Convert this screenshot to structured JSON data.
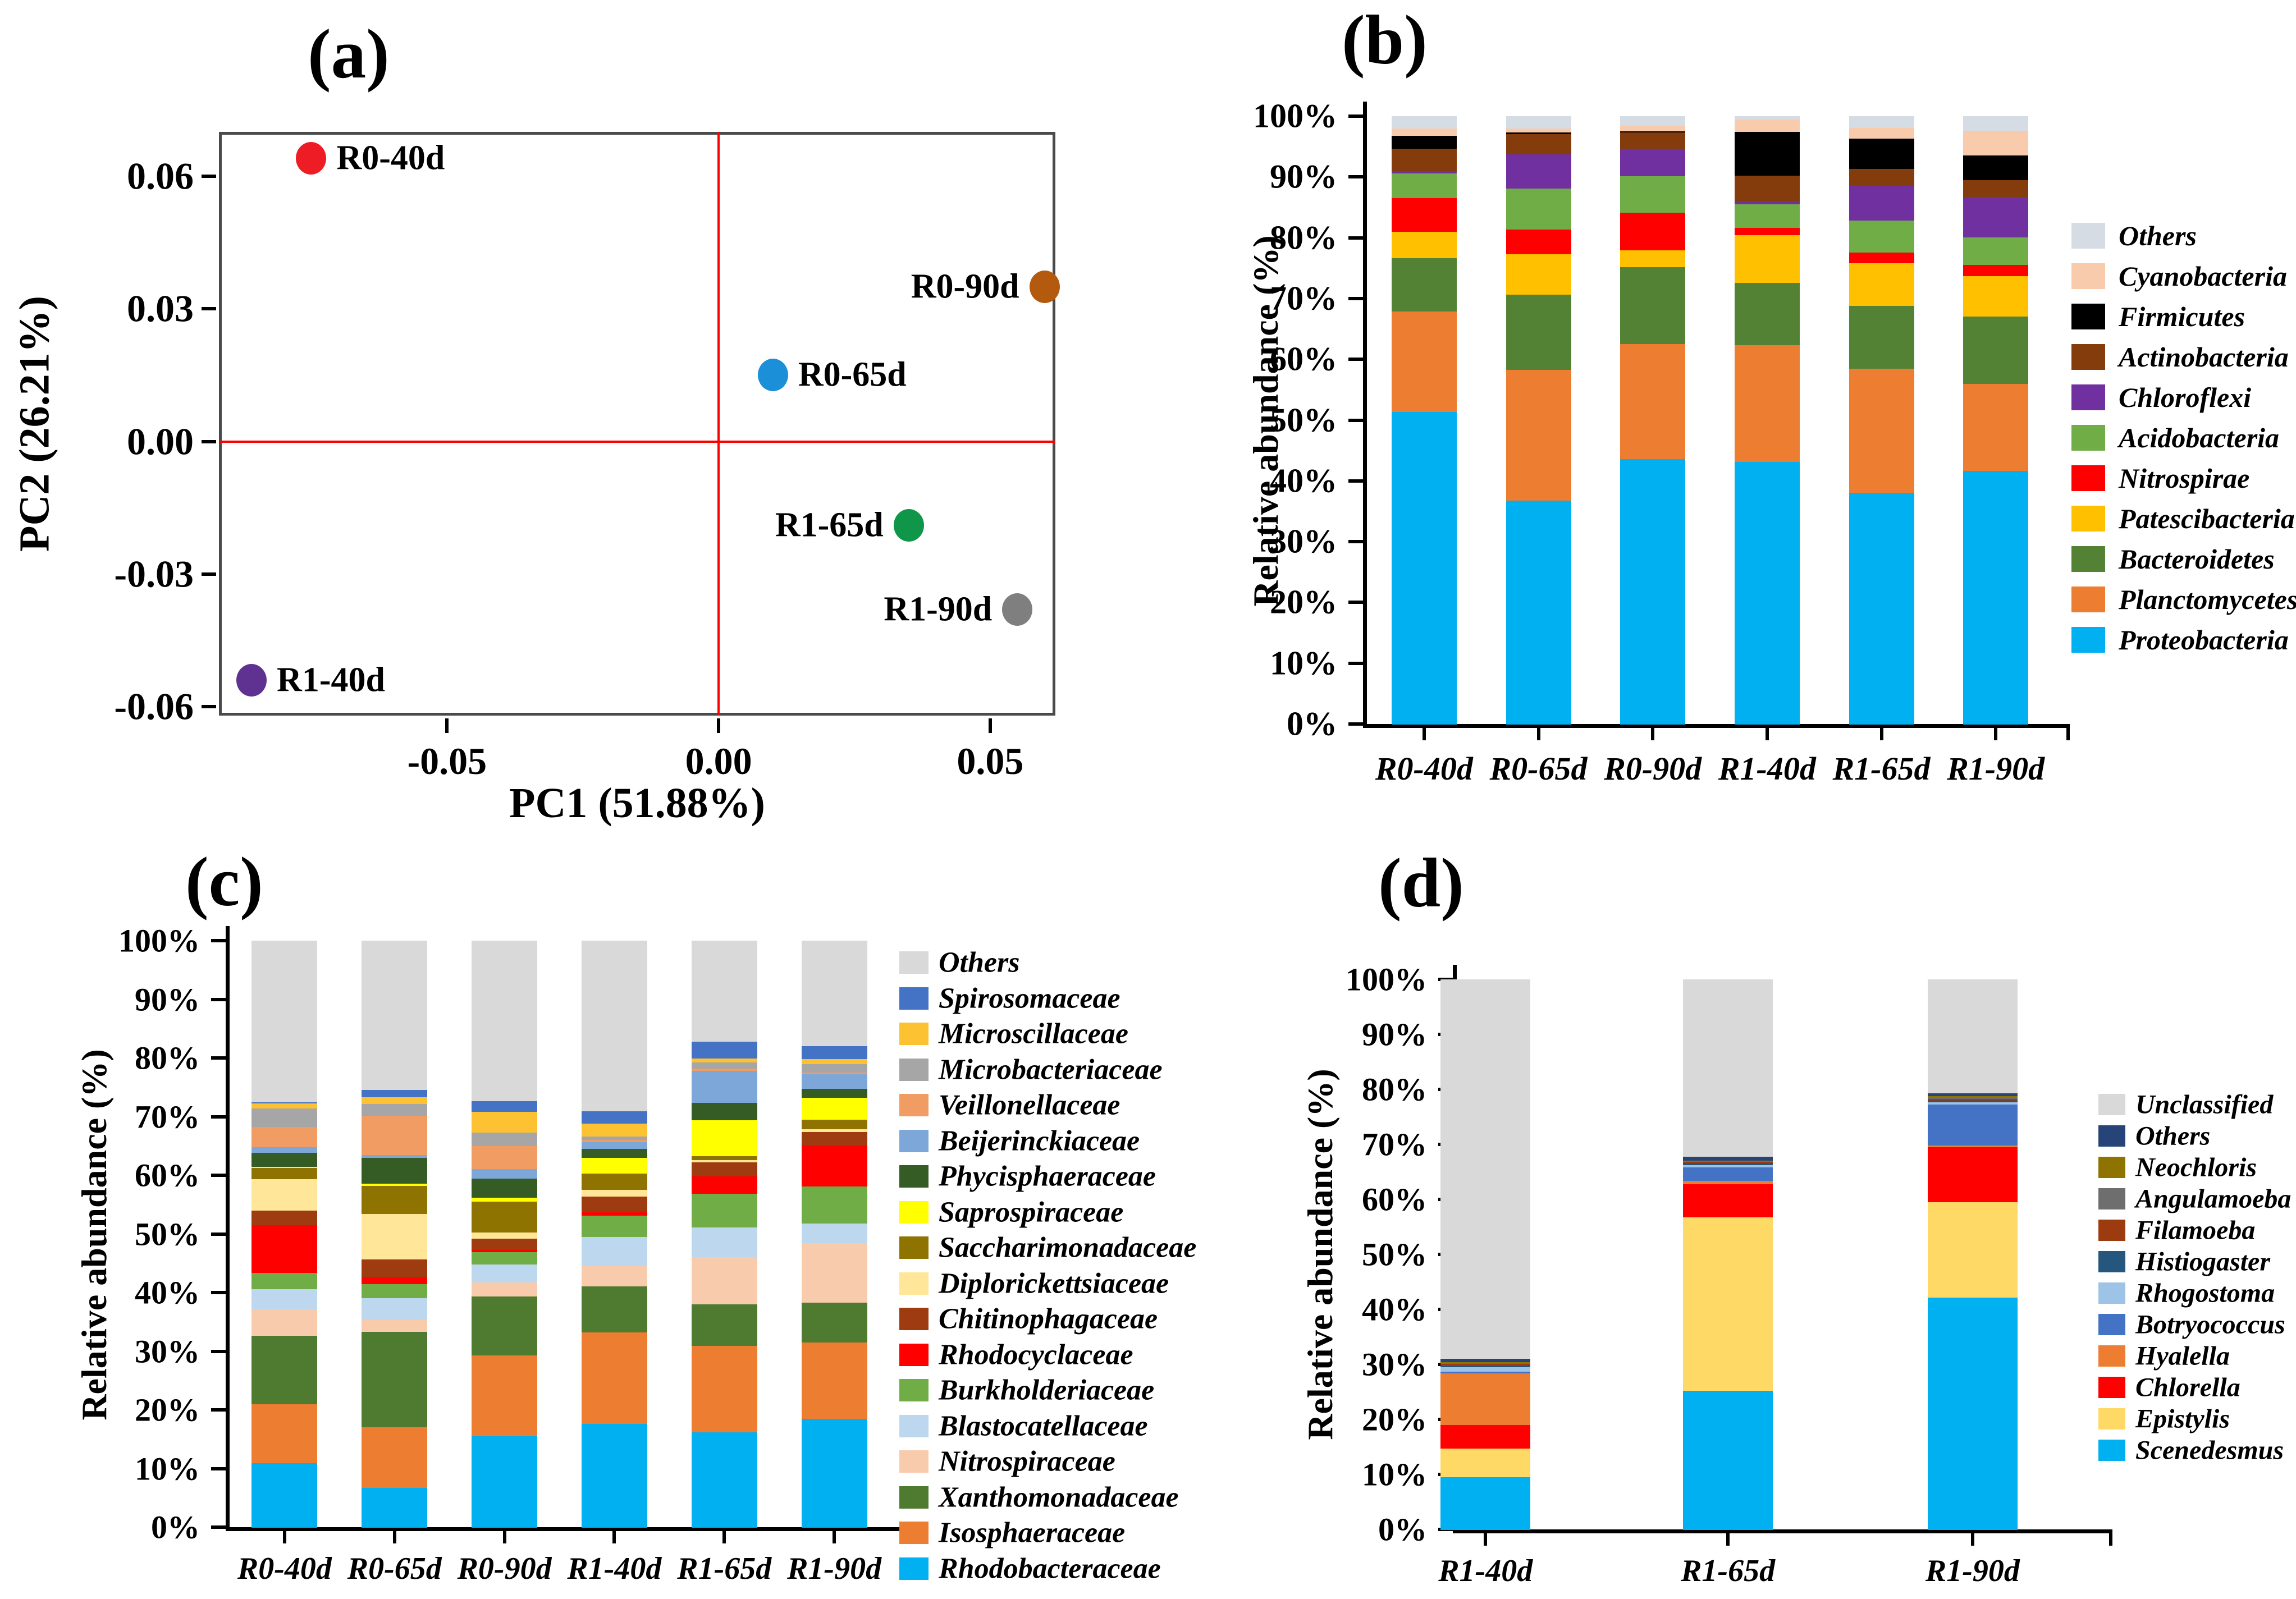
{
  "chart_data": [
    {
      "id": "pca",
      "type": "scatter",
      "title": "(a)",
      "xlabel": "PC1 (51.88%)",
      "ylabel": "PC2 (26.21%)",
      "xlim": [
        -0.092,
        0.062
      ],
      "ylim": [
        -0.062,
        0.07
      ],
      "xticks": [
        {
          "v": -0.05,
          "label": "-0.05"
        },
        {
          "v": 0,
          "label": "0.00"
        },
        {
          "v": 0.05,
          "label": "0.05"
        }
      ],
      "yticks": [
        {
          "v": 0.06,
          "label": "0.06"
        },
        {
          "v": 0.03,
          "label": "0.03"
        },
        {
          "v": 0,
          "label": "0.00"
        },
        {
          "v": -0.03,
          "label": "-0.03"
        },
        {
          "v": -0.06,
          "label": "-0.06"
        }
      ],
      "grid": false,
      "crosshair_color": "#ff0000",
      "frame_color": "#4a4a4a",
      "points": [
        {
          "label": "R0-40d",
          "x": -0.075,
          "y": 0.064,
          "color": "#ee1c24",
          "label_side": "right"
        },
        {
          "label": "R0-65d",
          "x": 0.01,
          "y": 0.015,
          "color": "#1b8fd8",
          "label_side": "right"
        },
        {
          "label": "R0-90d",
          "x": 0.06,
          "y": 0.035,
          "color": "#b35a0e",
          "label_side": "left"
        },
        {
          "label": "R1-40d",
          "x": -0.086,
          "y": -0.054,
          "color": "#5f3191",
          "label_side": "right"
        },
        {
          "label": "R1-65d",
          "x": 0.035,
          "y": -0.019,
          "color": "#0f9648",
          "label_side": "left"
        },
        {
          "label": "R1-90d",
          "x": 0.055,
          "y": -0.038,
          "color": "#7f7f7f",
          "label_side": "left"
        }
      ]
    },
    {
      "id": "phylum-bars",
      "type": "bar",
      "title": "(b)",
      "ylabel": "Relative abundance (%)",
      "ylim": [
        0,
        100
      ],
      "yticks": [
        "0%",
        "10%",
        "20%",
        "30%",
        "40%",
        "50%",
        "60%",
        "70%",
        "80%",
        "90%",
        "100%"
      ],
      "legend_position": "right",
      "categories": [
        "R0-40d",
        "R0-65d",
        "R0-90d",
        "R1-40d",
        "R1-65d",
        "R1-90d"
      ],
      "series": [
        {
          "name": "Proteobacteria",
          "color": "#00b0f0",
          "values": [
            51.4,
            36.8,
            43.6,
            43.2,
            38.1,
            41.7
          ]
        },
        {
          "name": "Planctomycetes",
          "color": "#ed7d31",
          "values": [
            16.5,
            21.5,
            19.0,
            19.2,
            20.4,
            14.3
          ]
        },
        {
          "name": "Bacteroidetes",
          "color": "#548235",
          "values": [
            8.8,
            12.4,
            12.6,
            10.2,
            10.3,
            11.1
          ]
        },
        {
          "name": "Patescibacteria",
          "color": "#ffc000",
          "values": [
            4.3,
            6.6,
            2.8,
            7.9,
            7.1,
            6.6
          ]
        },
        {
          "name": "Nitrospirae",
          "color": "#ff0000",
          "values": [
            5.6,
            4.1,
            6.2,
            1.2,
            1.7,
            1.9
          ]
        },
        {
          "name": "Acidobacteria",
          "color": "#70ad47",
          "values": [
            4.0,
            6.7,
            6.0,
            3.9,
            5.3,
            4.5
          ]
        },
        {
          "name": "Chloroflexi",
          "color": "#7030a0",
          "values": [
            0.4,
            5.7,
            4.5,
            0.4,
            5.7,
            6.7
          ]
        },
        {
          "name": "Actinobacteria",
          "color": "#843c0c",
          "values": [
            3.7,
            3.3,
            2.7,
            4.3,
            2.8,
            2.7
          ]
        },
        {
          "name": "Firmicutes",
          "color": "#000000",
          "values": [
            2.1,
            0.3,
            0.2,
            7.2,
            5.0,
            4.1
          ]
        },
        {
          "name": "Cyanobacteria",
          "color": "#f8cbad",
          "values": [
            1.2,
            0.6,
            0.9,
            2.0,
            1.7,
            4.1
          ]
        },
        {
          "name": "Others",
          "color": "#d6dce4",
          "values": [
            2.0,
            2.0,
            1.5,
            0.5,
            1.9,
            2.3
          ]
        }
      ]
    },
    {
      "id": "family-bars",
      "type": "bar",
      "title": "(c)",
      "ylabel": "Relative abundance (%)",
      "ylim": [
        0,
        100
      ],
      "yticks": [
        "0%",
        "10%",
        "20%",
        "30%",
        "40%",
        "50%",
        "60%",
        "70%",
        "80%",
        "90%",
        "100%"
      ],
      "legend_position": "right",
      "categories": [
        "R0-40d",
        "R0-65d",
        "R0-90d",
        "R1-40d",
        "R1-65d",
        "R1-90d"
      ],
      "series": [
        {
          "name": "Rhodobacteraceae",
          "color": "#00b0f0",
          "values": [
            11.0,
            6.8,
            15.6,
            17.7,
            16.2,
            18.5
          ]
        },
        {
          "name": "Isosphaeraceae",
          "color": "#ed7d31",
          "values": [
            10.0,
            10.3,
            13.7,
            15.6,
            14.8,
            13.0
          ]
        },
        {
          "name": "Xanthomonadaceae",
          "color": "#4f7b30",
          "values": [
            11.7,
            16.3,
            10.1,
            7.8,
            7.0,
            6.8
          ]
        },
        {
          "name": "Nitrospiraceae",
          "color": "#f8cbad",
          "values": [
            4.5,
            2.0,
            2.4,
            3.5,
            8.1,
            10.2
          ]
        },
        {
          "name": "Blastocatellaceae",
          "color": "#bdd7ee",
          "values": [
            3.4,
            3.7,
            3.0,
            4.9,
            5.1,
            3.3
          ]
        },
        {
          "name": "Burkholderiaceae",
          "color": "#70ad47",
          "values": [
            2.8,
            2.4,
            2.1,
            3.7,
            5.7,
            6.3
          ]
        },
        {
          "name": "Rhodocyclaceae",
          "color": "#ff0000",
          "values": [
            8.1,
            1.1,
            0.4,
            0.5,
            3.0,
            7.0
          ]
        },
        {
          "name": "Chitinophagaceae",
          "color": "#9e3b10",
          "values": [
            2.5,
            3.1,
            1.9,
            2.7,
            2.4,
            2.3
          ]
        },
        {
          "name": "Diplorickettsiaceae",
          "color": "#ffe699",
          "values": [
            5.4,
            7.8,
            1.1,
            1.2,
            0.3,
            0.5
          ]
        },
        {
          "name": "Saccharimonadaceae",
          "color": "#8f7300",
          "values": [
            1.9,
            4.7,
            5.3,
            2.7,
            0.7,
            1.6
          ]
        },
        {
          "name": "Saprospiraceae",
          "color": "#ffff00",
          "values": [
            0.2,
            0.4,
            0.6,
            2.7,
            6.1,
            3.8
          ]
        },
        {
          "name": "Phycisphaeraceae",
          "color": "#365c26",
          "values": [
            2.4,
            4.4,
            3.3,
            1.6,
            3.0,
            1.5
          ]
        },
        {
          "name": "Beijerinckiaceae",
          "color": "#7da7d8",
          "values": [
            0.9,
            0.5,
            1.6,
            1.1,
            5.5,
            2.5
          ]
        },
        {
          "name": "Veillonellaceae",
          "color": "#f09c62",
          "values": [
            3.5,
            6.7,
            3.9,
            0.4,
            0.3,
            0.3
          ]
        },
        {
          "name": "Microbacteriaceae",
          "color": "#a6a6a6",
          "values": [
            3.1,
            2.0,
            2.3,
            0.6,
            1.1,
            1.4
          ]
        },
        {
          "name": "Microscillaceae",
          "color": "#fdc232",
          "values": [
            0.9,
            1.2,
            3.6,
            2.2,
            0.7,
            0.9
          ]
        },
        {
          "name": "Spirosomaceae",
          "color": "#4472c4",
          "values": [
            0.2,
            1.2,
            1.8,
            2.1,
            2.8,
            2.2
          ]
        },
        {
          "name": "Others",
          "color": "#d9d9d9",
          "values": [
            27.5,
            25.4,
            27.3,
            29.0,
            17.2,
            17.9
          ]
        }
      ]
    },
    {
      "id": "eukaryote-bars",
      "type": "bar",
      "title": "(d)",
      "ylabel": "Relative abundance (%)",
      "ylim": [
        0,
        100
      ],
      "yticks": [
        "0%",
        "10%",
        "20%",
        "30%",
        "40%",
        "50%",
        "60%",
        "70%",
        "80%",
        "90%",
        "100%"
      ],
      "legend_position": "right",
      "categories": [
        "R1-40d",
        "R1-65d",
        "R1-90d"
      ],
      "series": [
        {
          "name": "Scenedesmus",
          "color": "#00b0f0",
          "values": [
            9.6,
            25.3,
            42.2
          ]
        },
        {
          "name": "Epistylis",
          "color": "#ffd966",
          "values": [
            5.2,
            31.5,
            17.3
          ]
        },
        {
          "name": "Chlorella",
          "color": "#ff0000",
          "values": [
            4.2,
            6.0,
            10.0
          ]
        },
        {
          "name": "Hyalella",
          "color": "#ed7d31",
          "values": [
            9.4,
            0.6,
            0.4
          ]
        },
        {
          "name": "Botryococcus",
          "color": "#4472c4",
          "values": [
            0.3,
            2.5,
            7.4
          ]
        },
        {
          "name": "Rhogostoma",
          "color": "#9dc3e6",
          "values": [
            0.9,
            0.4,
            0.4
          ]
        },
        {
          "name": "Histiogaster",
          "color": "#24567e",
          "values": [
            0.2,
            0.4,
            0.3
          ]
        },
        {
          "name": "Filamoeba",
          "color": "#9c3a10",
          "values": [
            0.4,
            0.2,
            0.3
          ]
        },
        {
          "name": "Angulamoeba",
          "color": "#6e6e6e",
          "values": [
            0.1,
            0.1,
            0.3
          ]
        },
        {
          "name": "Neochloris",
          "color": "#8f7300",
          "values": [
            0.2,
            0.1,
            0.2
          ]
        },
        {
          "name": "Others",
          "color": "#264478",
          "values": [
            0.6,
            0.7,
            0.5
          ]
        },
        {
          "name": "Unclassified",
          "color": "#d9d9d9",
          "values": [
            68.9,
            32.2,
            20.7
          ]
        }
      ]
    }
  ]
}
